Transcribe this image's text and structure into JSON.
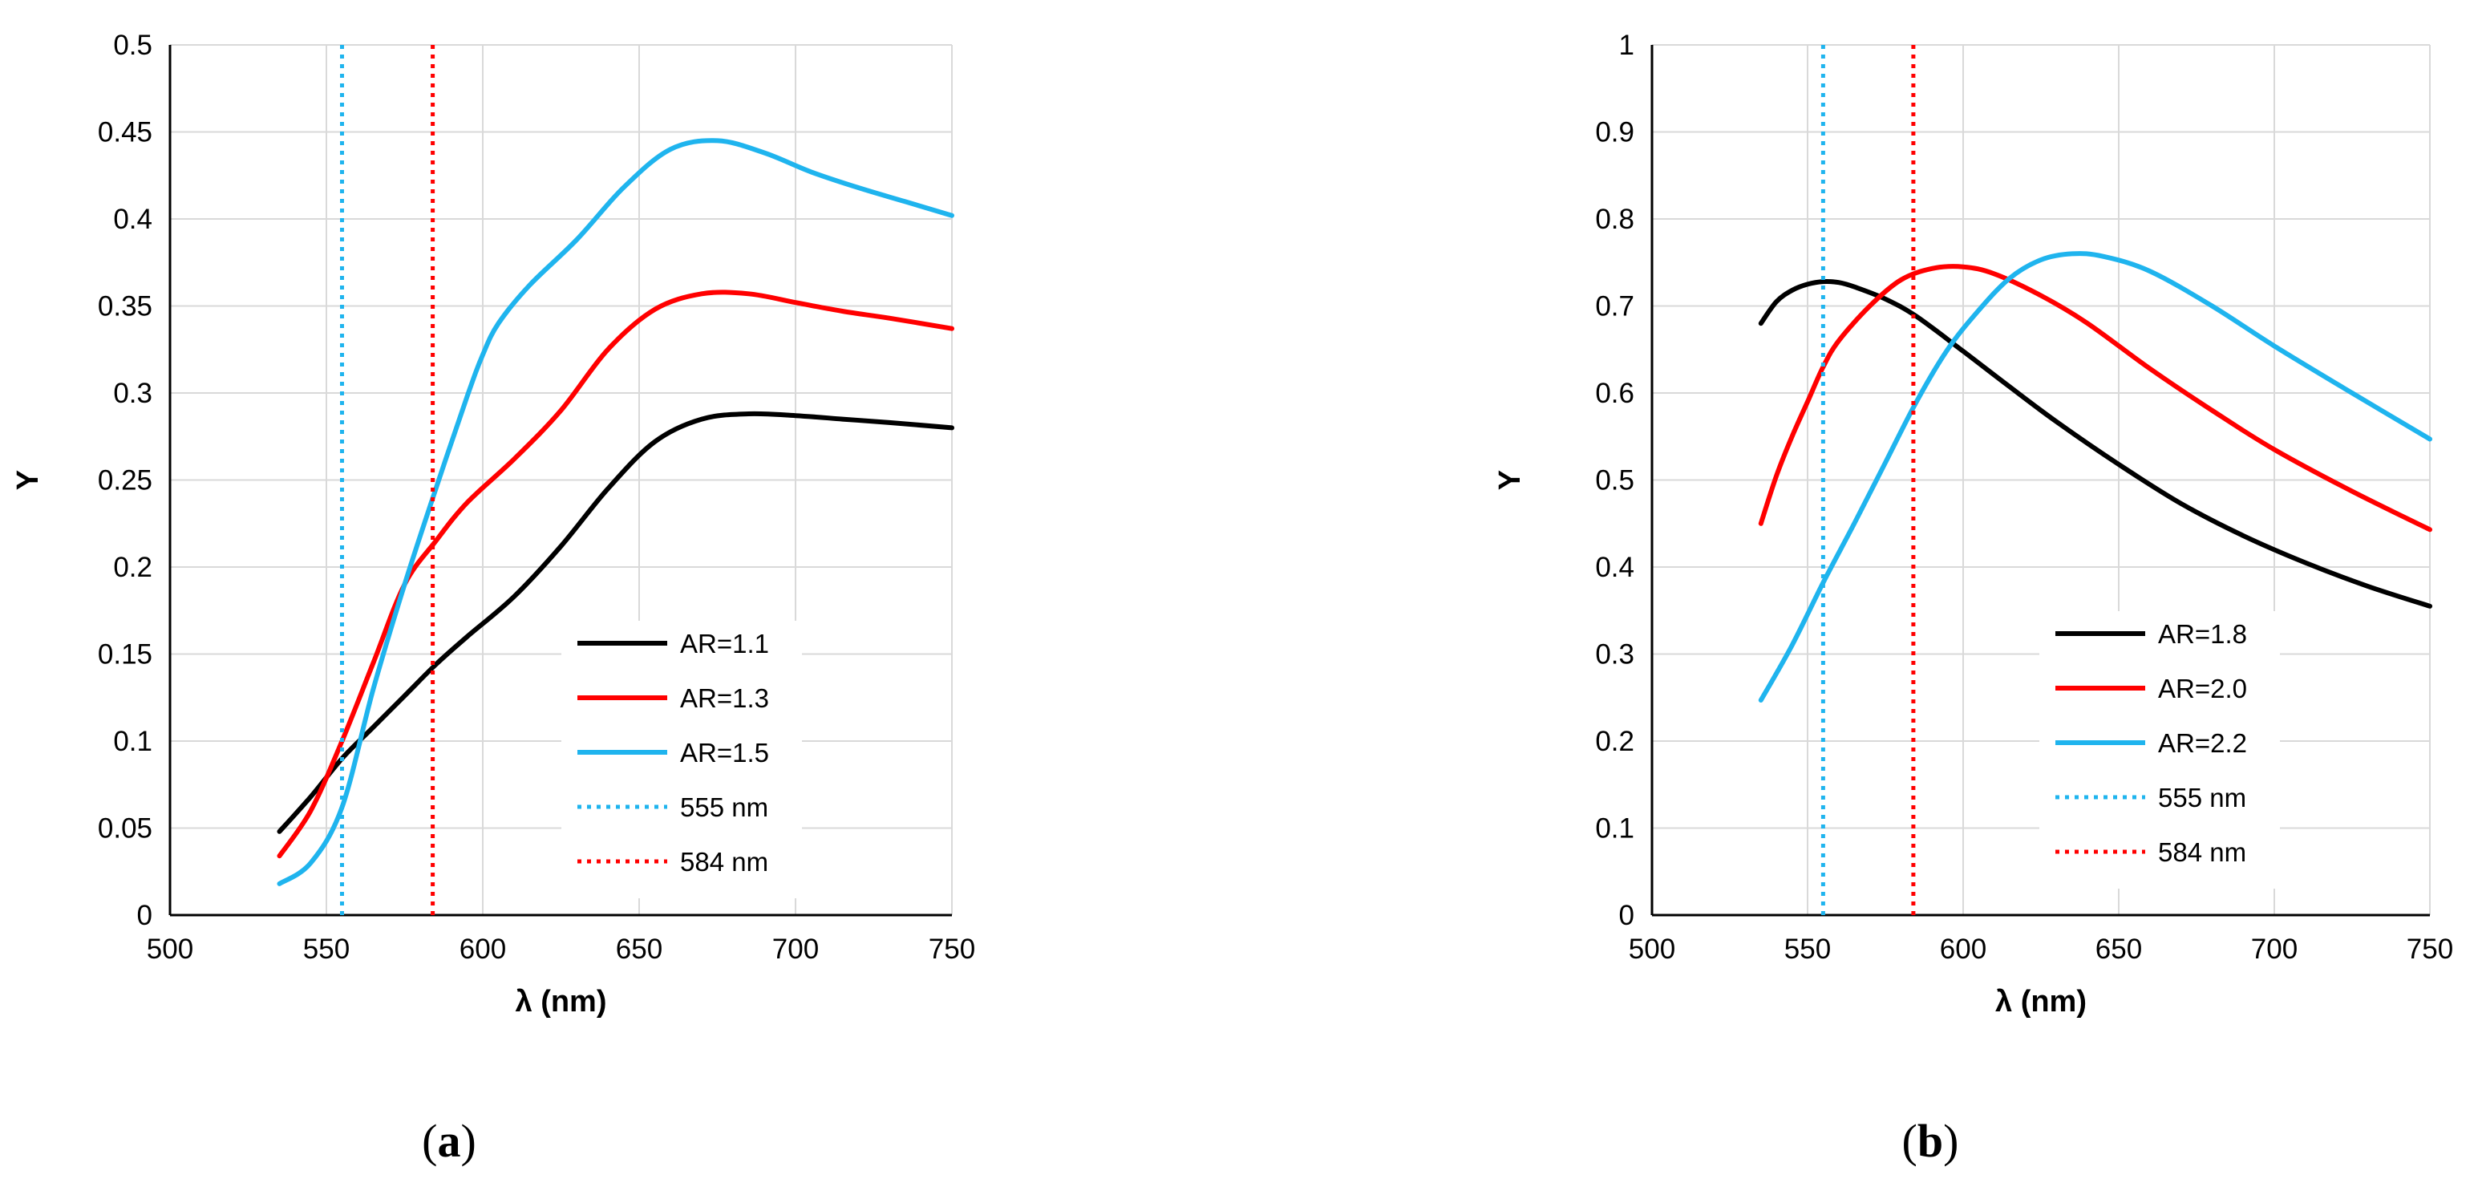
{
  "panels": [
    {
      "caption": {
        "open": "(",
        "letter": "a",
        "close": ")"
      }
    },
    {
      "caption": {
        "open": "(",
        "letter": "b",
        "close": ")"
      }
    }
  ],
  "chart_data": [
    {
      "type": "line",
      "title": "",
      "xlabel": "λ (nm)",
      "ylabel": "Y",
      "xlim": [
        500,
        750
      ],
      "ylim": [
        0,
        0.5
      ],
      "xticks": [
        500,
        550,
        600,
        650,
        700,
        750
      ],
      "yticks": [
        0,
        0.05,
        0.1,
        0.15,
        0.2,
        0.25,
        0.3,
        0.35,
        0.4,
        0.45,
        0.5
      ],
      "grid": true,
      "legend_position": "lower-right",
      "series": [
        {
          "name": "AR=1.1",
          "color": "#000000",
          "style": "solid",
          "x": [
            535,
            545,
            555,
            565,
            575,
            585,
            595,
            610,
            625,
            640,
            655,
            670,
            685,
            700,
            715,
            730,
            750
          ],
          "y": [
            0.048,
            0.068,
            0.09,
            0.108,
            0.126,
            0.144,
            0.16,
            0.183,
            0.212,
            0.245,
            0.272,
            0.285,
            0.288,
            0.287,
            0.285,
            0.283,
            0.28
          ]
        },
        {
          "name": "AR=1.3",
          "color": "#ff0000",
          "style": "solid",
          "x": [
            535,
            545,
            555,
            565,
            575,
            585,
            595,
            610,
            625,
            640,
            655,
            670,
            685,
            700,
            715,
            730,
            750
          ],
          "y": [
            0.034,
            0.06,
            0.1,
            0.145,
            0.19,
            0.215,
            0.237,
            0.262,
            0.29,
            0.325,
            0.348,
            0.357,
            0.357,
            0.352,
            0.347,
            0.343,
            0.337
          ]
        },
        {
          "name": "AR=1.5",
          "color": "#1fb4ee",
          "style": "solid",
          "x": [
            535,
            545,
            555,
            565,
            575,
            585,
            595,
            600,
            605,
            615,
            630,
            645,
            660,
            675,
            690,
            705,
            720,
            735,
            750
          ],
          "y": [
            0.018,
            0.03,
            0.062,
            0.13,
            0.19,
            0.245,
            0.298,
            0.322,
            0.34,
            0.362,
            0.388,
            0.418,
            0.44,
            0.445,
            0.438,
            0.427,
            0.418,
            0.41,
            0.402
          ]
        },
        {
          "name": "555 nm",
          "color": "#1fb4ee",
          "style": "dotted",
          "x": [
            555,
            555
          ],
          "y": [
            0,
            0.5
          ]
        },
        {
          "name": "584 nm",
          "color": "#ff0000",
          "style": "dotted",
          "x": [
            584,
            584
          ],
          "y": [
            0,
            0.5
          ]
        }
      ]
    },
    {
      "type": "line",
      "title": "",
      "xlabel": "λ (nm)",
      "ylabel": "Y",
      "xlim": [
        500,
        750
      ],
      "ylim": [
        0,
        1
      ],
      "xticks": [
        500,
        550,
        600,
        650,
        700,
        750
      ],
      "yticks": [
        0,
        0.1,
        0.2,
        0.3,
        0.4,
        0.5,
        0.6,
        0.7,
        0.8,
        0.9,
        1
      ],
      "grid": true,
      "legend_position": "lower-right",
      "series": [
        {
          "name": "AR=1.8",
          "color": "#000000",
          "style": "solid",
          "x": [
            535,
            540,
            545,
            550,
            555,
            560,
            565,
            575,
            585,
            600,
            615,
            630,
            650,
            670,
            690,
            710,
            730,
            750
          ],
          "y": [
            0.68,
            0.705,
            0.718,
            0.725,
            0.728,
            0.727,
            0.722,
            0.708,
            0.688,
            0.648,
            0.607,
            0.567,
            0.518,
            0.473,
            0.436,
            0.405,
            0.378,
            0.355
          ]
        },
        {
          "name": "AR=2.0",
          "color": "#ff0000",
          "style": "solid",
          "x": [
            535,
            540,
            545,
            550,
            555,
            560,
            570,
            580,
            590,
            600,
            610,
            625,
            640,
            660,
            680,
            700,
            725,
            750
          ],
          "y": [
            0.45,
            0.505,
            0.55,
            0.59,
            0.63,
            0.66,
            0.7,
            0.73,
            0.743,
            0.745,
            0.737,
            0.712,
            0.68,
            0.628,
            0.58,
            0.535,
            0.487,
            0.443
          ]
        },
        {
          "name": "AR=2.2",
          "color": "#1fb4ee",
          "style": "solid",
          "x": [
            535,
            545,
            555,
            565,
            575,
            585,
            595,
            605,
            615,
            625,
            635,
            645,
            660,
            680,
            700,
            725,
            750
          ],
          "y": [
            0.247,
            0.31,
            0.382,
            0.45,
            0.52,
            0.59,
            0.65,
            0.695,
            0.732,
            0.753,
            0.76,
            0.757,
            0.74,
            0.7,
            0.654,
            0.6,
            0.547
          ]
        },
        {
          "name": "555 nm",
          "color": "#1fb4ee",
          "style": "dotted",
          "x": [
            555,
            555
          ],
          "y": [
            0,
            1
          ]
        },
        {
          "name": "584 nm",
          "color": "#ff0000",
          "style": "dotted",
          "x": [
            584,
            584
          ],
          "y": [
            0,
            1
          ]
        }
      ]
    }
  ]
}
